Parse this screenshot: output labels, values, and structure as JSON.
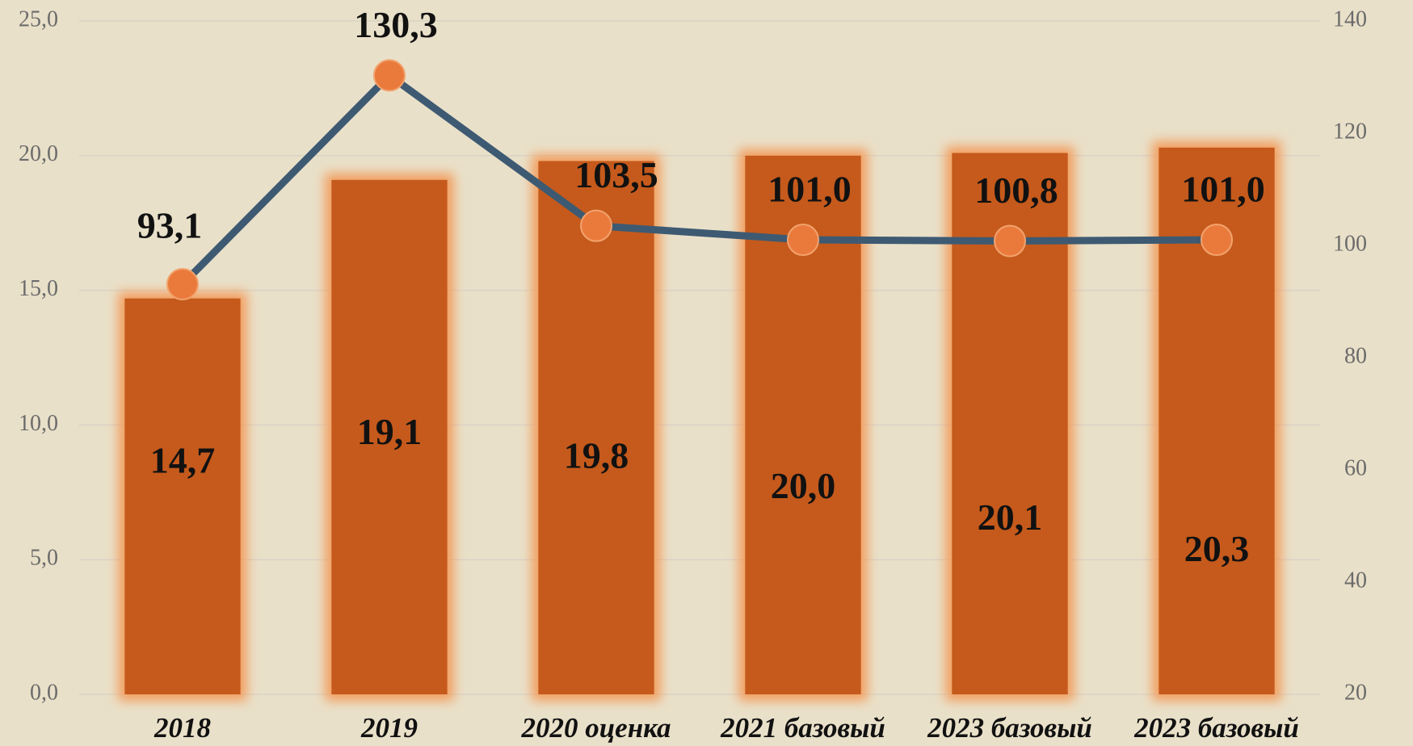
{
  "chart_data": {
    "type": "bar",
    "categories": [
      "2018",
      "2019",
      "2020 оценка",
      "2021 базовый",
      "2023 базовый",
      "2023 базовый"
    ],
    "series": [
      {
        "type": "bar",
        "color": "#c55a1e",
        "values": [
          14.7,
          19.1,
          19.8,
          20.0,
          20.1,
          20.3
        ],
        "value_labels": [
          "14,7",
          "19,1",
          "19,8",
          "20,0",
          "20,1",
          "20,3"
        ]
      },
      {
        "type": "line",
        "axis": "y2",
        "color": "#3e5a72",
        "marker_color": "#ea7a3c",
        "values": [
          93.1,
          130.3,
          103.5,
          101.0,
          100.8,
          101.0
        ],
        "value_labels": [
          "93,1",
          "130,3",
          "103,5",
          "101,0",
          "100,8",
          "101,0"
        ]
      }
    ],
    "ylim": [
      0,
      25
    ],
    "yticks": [
      {
        "value": 0,
        "label": "0,0"
      },
      {
        "value": 5,
        "label": "5,0"
      },
      {
        "value": 10,
        "label": "10,0"
      },
      {
        "value": 15,
        "label": "15,0"
      },
      {
        "value": 20,
        "label": "20,0"
      },
      {
        "value": 25,
        "label": "25,0"
      }
    ],
    "y2lim": [
      20,
      140
    ],
    "y2ticks": [
      20,
      40,
      60,
      80,
      100,
      120,
      140
    ],
    "grid": true
  }
}
